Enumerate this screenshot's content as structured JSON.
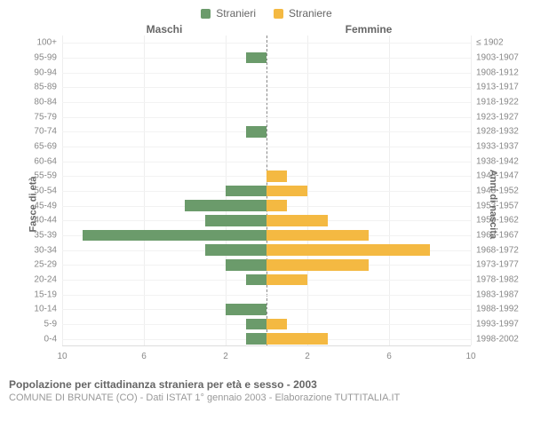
{
  "legend": {
    "male_label": "Stranieri",
    "female_label": "Straniere",
    "male_color": "#6b9b6b",
    "female_color": "#f4b942"
  },
  "headers": {
    "left": "Maschi",
    "right": "Femmine"
  },
  "axis_titles": {
    "left": "Fasce di età",
    "right": "Anni di nascita"
  },
  "chart": {
    "x_max": 10,
    "x_ticks": [
      10,
      6,
      2,
      2,
      6,
      10
    ],
    "rows": [
      {
        "age": "100+",
        "birth": "≤ 1902",
        "m": 0,
        "f": 0
      },
      {
        "age": "95-99",
        "birth": "1903-1907",
        "m": 1,
        "f": 0
      },
      {
        "age": "90-94",
        "birth": "1908-1912",
        "m": 0,
        "f": 0
      },
      {
        "age": "85-89",
        "birth": "1913-1917",
        "m": 0,
        "f": 0
      },
      {
        "age": "80-84",
        "birth": "1918-1922",
        "m": 0,
        "f": 0
      },
      {
        "age": "75-79",
        "birth": "1923-1927",
        "m": 0,
        "f": 0
      },
      {
        "age": "70-74",
        "birth": "1928-1932",
        "m": 1,
        "f": 0
      },
      {
        "age": "65-69",
        "birth": "1933-1937",
        "m": 0,
        "f": 0
      },
      {
        "age": "60-64",
        "birth": "1938-1942",
        "m": 0,
        "f": 0
      },
      {
        "age": "55-59",
        "birth": "1943-1947",
        "m": 0,
        "f": 1
      },
      {
        "age": "50-54",
        "birth": "1948-1952",
        "m": 2,
        "f": 2
      },
      {
        "age": "45-49",
        "birth": "1953-1957",
        "m": 4,
        "f": 1
      },
      {
        "age": "40-44",
        "birth": "1958-1962",
        "m": 3,
        "f": 3
      },
      {
        "age": "35-39",
        "birth": "1963-1967",
        "m": 9,
        "f": 5
      },
      {
        "age": "30-34",
        "birth": "1968-1972",
        "m": 3,
        "f": 8
      },
      {
        "age": "25-29",
        "birth": "1973-1977",
        "m": 2,
        "f": 5
      },
      {
        "age": "20-24",
        "birth": "1978-1982",
        "m": 1,
        "f": 2
      },
      {
        "age": "15-19",
        "birth": "1983-1987",
        "m": 0,
        "f": 0
      },
      {
        "age": "10-14",
        "birth": "1988-1992",
        "m": 2,
        "f": 0
      },
      {
        "age": "5-9",
        "birth": "1993-1997",
        "m": 1,
        "f": 1
      },
      {
        "age": "0-4",
        "birth": "1998-2002",
        "m": 1,
        "f": 3
      }
    ]
  },
  "caption": "Popolazione per cittadinanza straniera per età e sesso - 2003",
  "subcaption": "COMUNE DI BRUNATE (CO) - Dati ISTAT 1° gennaio 2003 - Elaborazione TUTTITALIA.IT"
}
